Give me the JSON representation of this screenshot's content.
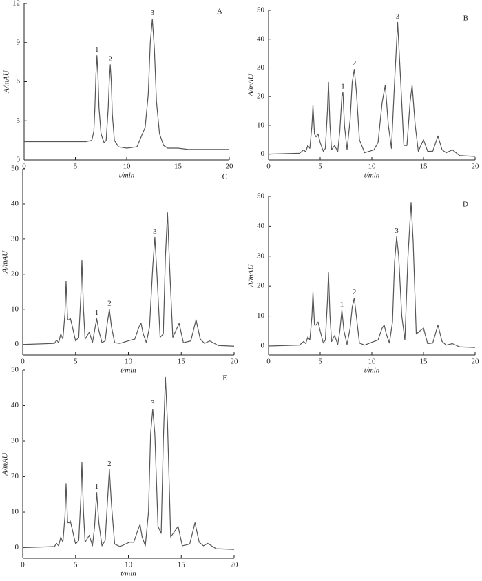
{
  "chart_data": [
    {
      "type": "line",
      "panel": "A",
      "xlabel": "t/min",
      "ylabel": "A/mAU",
      "xlim": [
        0,
        20
      ],
      "ylim": [
        0,
        12
      ],
      "xticks": [
        0,
        5,
        10,
        15,
        20
      ],
      "yticks": [
        0,
        3,
        6,
        9,
        12
      ],
      "series": [
        {
          "color": "#555555",
          "x": [
            0,
            2,
            4,
            6,
            6.6,
            6.8,
            6.9,
            7.0,
            7.1,
            7.2,
            7.3,
            7.5,
            7.8,
            8.0,
            8.2,
            8.3,
            8.4,
            8.5,
            8.6,
            8.8,
            9.2,
            10,
            11,
            11.8,
            12.1,
            12.3,
            12.5,
            12.7,
            12.9,
            13.2,
            13.6,
            14,
            15,
            16,
            18,
            20
          ],
          "values": [
            1.4,
            1.4,
            1.4,
            1.4,
            1.5,
            2.2,
            4,
            6.5,
            8.0,
            6.5,
            4,
            2,
            1.3,
            1.5,
            4,
            6,
            7.3,
            6,
            3.5,
            1.5,
            1.0,
            0.9,
            1.0,
            2.5,
            5,
            9,
            10.8,
            8.5,
            4.5,
            2,
            1.1,
            0.9,
            0.9,
            0.8,
            0.8,
            0.8
          ]
        }
      ],
      "peaks": [
        {
          "label": "1",
          "x": 7.1,
          "y": 8.0
        },
        {
          "label": "2",
          "x": 8.4,
          "y": 7.3
        },
        {
          "label": "3",
          "x": 12.5,
          "y": 10.8
        }
      ]
    },
    {
      "type": "line",
      "panel": "B",
      "xlabel": "t/min",
      "ylabel": "A/mAU",
      "xlim": [
        0,
        20
      ],
      "ylim": [
        -2,
        50
      ],
      "xticks": [
        0,
        5,
        10,
        15,
        20
      ],
      "yticks": [
        0,
        10,
        20,
        30,
        40,
        50
      ],
      "series": [
        {
          "color": "#555555",
          "x": [
            0,
            3,
            3.4,
            3.6,
            3.8,
            4.0,
            4.2,
            4.3,
            4.45,
            4.6,
            4.8,
            5.0,
            5.3,
            5.5,
            5.7,
            5.8,
            5.95,
            6.1,
            6.4,
            6.7,
            6.9,
            7.1,
            7.2,
            7.35,
            7.6,
            7.9,
            8.1,
            8.3,
            8.5,
            8.8,
            9.3,
            10.2,
            10.6,
            11.0,
            11.3,
            11.6,
            11.9,
            12.2,
            12.5,
            12.8,
            13.1,
            13.4,
            13.7,
            13.9,
            14.2,
            14.5,
            15.0,
            15.4,
            15.9,
            16.4,
            16.8,
            17.2,
            17.8,
            18.5,
            20
          ],
          "values": [
            0,
            0.3,
            1.5,
            0.8,
            3,
            2,
            10,
            17,
            7,
            6,
            7,
            4,
            1,
            2,
            15,
            25,
            10,
            1.5,
            3,
            0.8,
            8,
            20,
            21.5,
            10,
            1.5,
            12,
            25,
            29.5,
            22,
            5,
            0.5,
            1.5,
            4,
            18,
            24,
            10,
            2,
            25,
            45.8,
            25,
            3,
            3,
            18,
            24,
            10,
            1,
            5,
            1,
            1,
            6.3,
            1.5,
            0.5,
            1.5,
            -0.5,
            -0.8
          ]
        }
      ],
      "peaks": [
        {
          "label": "1",
          "x": 7.2,
          "y": 21.5
        },
        {
          "label": "2",
          "x": 8.3,
          "y": 29.5
        },
        {
          "label": "3",
          "x": 12.5,
          "y": 45.8
        }
      ]
    },
    {
      "type": "line",
      "panel": "C",
      "xlabel": "t/min",
      "ylabel": "A/mAU",
      "xlim": [
        0,
        20
      ],
      "ylim": [
        -3,
        50
      ],
      "xticks": [
        0,
        5,
        10,
        15,
        20
      ],
      "yticks": [
        0,
        10,
        20,
        30,
        40,
        50
      ],
      "series": [
        {
          "color": "#555555",
          "x": [
            0,
            3,
            3.2,
            3.4,
            3.6,
            3.8,
            4.0,
            4.1,
            4.25,
            4.4,
            4.5,
            4.7,
            5.0,
            5.3,
            5.5,
            5.6,
            5.75,
            5.9,
            6.3,
            6.6,
            6.8,
            7.0,
            7.2,
            7.5,
            7.8,
            8.0,
            8.2,
            8.4,
            8.7,
            9.2,
            10.2,
            10.6,
            11.0,
            11.2,
            11.4,
            11.7,
            12.0,
            12.3,
            12.5,
            12.7,
            13.0,
            13.3,
            13.5,
            13.7,
            13.9,
            14.2,
            14.8,
            15.2,
            15.9,
            16.4,
            16.8,
            17.2,
            17.7,
            18.5,
            20
          ],
          "values": [
            0,
            0.3,
            1.2,
            0.5,
            3,
            1.5,
            9,
            18,
            7,
            7,
            7.5,
            5,
            1,
            2,
            14,
            24,
            10,
            1.5,
            3.5,
            0.5,
            4,
            7.3,
            4,
            0.5,
            1,
            6,
            10,
            5,
            0.5,
            0.3,
            1.2,
            1.5,
            5,
            6,
            3,
            0.5,
            5,
            22,
            30.5,
            20,
            2,
            3,
            25,
            37.5,
            22,
            2,
            6,
            0.5,
            1,
            7,
            1.5,
            0.3,
            1,
            -0.3,
            -0.5
          ]
        }
      ],
      "peaks": [
        {
          "label": "1",
          "x": 7.0,
          "y": 7.3
        },
        {
          "label": "2",
          "x": 8.2,
          "y": 10
        },
        {
          "label": "3",
          "x": 12.5,
          "y": 30.5
        }
      ]
    },
    {
      "type": "line",
      "panel": "D",
      "xlabel": "t/min",
      "ylabel": "A/mAU",
      "xlim": [
        0,
        20
      ],
      "ylim": [
        -3,
        50
      ],
      "xticks": [
        0,
        5,
        10,
        15,
        20
      ],
      "yticks": [
        0,
        10,
        20,
        30,
        40,
        50
      ],
      "series": [
        {
          "color": "#555555",
          "x": [
            0,
            3,
            3.4,
            3.6,
            3.8,
            4.0,
            4.2,
            4.3,
            4.45,
            4.6,
            4.8,
            5.0,
            5.3,
            5.5,
            5.7,
            5.8,
            5.95,
            6.1,
            6.4,
            6.7,
            6.9,
            7.1,
            7.3,
            7.6,
            7.9,
            8.1,
            8.3,
            8.5,
            8.8,
            9.3,
            10.2,
            10.6,
            11.0,
            11.2,
            11.4,
            11.7,
            12.0,
            12.2,
            12.4,
            12.6,
            12.9,
            13.2,
            13.5,
            13.8,
            14.0,
            14.3,
            15.0,
            15.4,
            15.9,
            16.4,
            16.8,
            17.2,
            17.8,
            18.5,
            20
          ],
          "values": [
            0,
            0.3,
            1.5,
            0.8,
            3,
            2,
            10,
            18,
            7,
            7,
            8,
            5,
            1,
            2,
            15,
            24.5,
            10,
            1.5,
            3.5,
            0.5,
            5,
            12,
            5,
            0.5,
            6,
            13,
            16,
            10,
            1,
            0.3,
            1.5,
            2,
            6,
            7,
            4,
            1,
            8,
            28,
            36.5,
            30,
            10,
            2,
            30,
            48,
            35,
            4,
            6,
            0.8,
            1,
            7,
            1.5,
            0.3,
            0.8,
            -0.3,
            -0.5
          ]
        }
      ],
      "peaks": [
        {
          "label": "1",
          "x": 7.1,
          "y": 12
        },
        {
          "label": "2",
          "x": 8.3,
          "y": 16
        },
        {
          "label": "3",
          "x": 12.4,
          "y": 36.5
        }
      ]
    },
    {
      "type": "line",
      "panel": "E",
      "xlabel": "t/min",
      "ylabel": "A/mAU",
      "xlim": [
        0,
        20
      ],
      "ylim": [
        -3,
        50
      ],
      "xticks": [
        0,
        5,
        10,
        15,
        20
      ],
      "yticks": [
        0,
        10,
        20,
        30,
        40,
        50
      ],
      "series": [
        {
          "color": "#555555",
          "x": [
            0,
            3,
            3.2,
            3.4,
            3.6,
            3.8,
            4.0,
            4.1,
            4.25,
            4.4,
            4.5,
            4.7,
            5.0,
            5.3,
            5.5,
            5.6,
            5.75,
            5.9,
            6.3,
            6.6,
            6.8,
            7.0,
            7.2,
            7.5,
            7.8,
            8.0,
            8.2,
            8.4,
            8.7,
            9.2,
            10.1,
            10.5,
            10.9,
            11.1,
            11.3,
            11.6,
            11.9,
            12.1,
            12.3,
            12.5,
            12.8,
            13.1,
            13.3,
            13.5,
            13.7,
            14.0,
            14.7,
            15.1,
            15.8,
            16.3,
            16.7,
            17.1,
            17.5,
            18.3,
            20
          ],
          "values": [
            0,
            0.3,
            1.2,
            0.5,
            3,
            1.5,
            9,
            18,
            7,
            7,
            7.5,
            5,
            1,
            2,
            14,
            24,
            10,
            1.5,
            3.5,
            0.5,
            6,
            15.5,
            7,
            0.5,
            2,
            12,
            22,
            12,
            1,
            0.3,
            1.5,
            1.5,
            5,
            6.5,
            3,
            0.5,
            10,
            32,
            39,
            32,
            6,
            4,
            30,
            48,
            35,
            3,
            6,
            0.5,
            1,
            7,
            1.5,
            0.5,
            1.2,
            -0.3,
            -0.5
          ]
        }
      ],
      "peaks": [
        {
          "label": "1",
          "x": 7.0,
          "y": 15.5
        },
        {
          "label": "2",
          "x": 8.2,
          "y": 22
        },
        {
          "label": "3",
          "x": 12.3,
          "y": 39
        }
      ]
    }
  ]
}
